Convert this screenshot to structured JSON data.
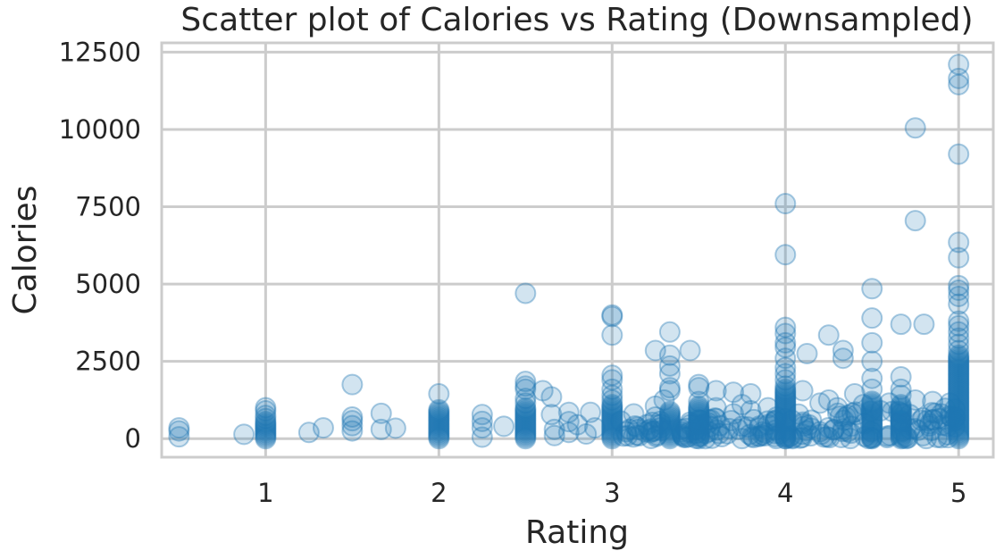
{
  "chart_data": {
    "type": "scatter",
    "title": "Scatter plot of Calories vs Rating (Downsampled)",
    "xlabel": "Rating",
    "ylabel": "Calories",
    "xlim": [
      0.4,
      5.2
    ],
    "ylim": [
      -600,
      12800
    ],
    "xticks": [
      1,
      2,
      3,
      4,
      5
    ],
    "yticks": [
      0,
      2500,
      5000,
      7500,
      10000,
      12500
    ],
    "grid": true,
    "color": "#1f77b4",
    "points": [
      [
        0.5,
        60
      ],
      [
        0.5,
        250
      ],
      [
        0.5,
        350
      ],
      [
        0.875,
        140
      ],
      [
        1.25,
        200
      ],
      [
        1.333,
        350
      ],
      [
        1.5,
        250
      ],
      [
        1.5,
        420
      ],
      [
        1.5,
        580
      ],
      [
        1.5,
        700
      ],
      [
        1.5,
        1750
      ],
      [
        1.667,
        300
      ],
      [
        1.667,
        820
      ],
      [
        1.75,
        340
      ],
      [
        2.25,
        50
      ],
      [
        2.25,
        350
      ],
      [
        2.25,
        560
      ],
      [
        2.25,
        780
      ],
      [
        2.375,
        400
      ],
      [
        2.5,
        4700
      ],
      [
        2.5,
        1850
      ],
      [
        2.5,
        1700
      ],
      [
        2.5,
        1600
      ],
      [
        2.6,
        1550
      ],
      [
        2.65,
        1350
      ],
      [
        2.65,
        780
      ],
      [
        2.667,
        100
      ],
      [
        2.667,
        300
      ],
      [
        2.75,
        200
      ],
      [
        2.75,
        550
      ],
      [
        2.75,
        850
      ],
      [
        2.8,
        450
      ],
      [
        2.85,
        150
      ],
      [
        2.875,
        850
      ],
      [
        2.9,
        350
      ],
      [
        3,
        4000
      ],
      [
        3,
        3950
      ],
      [
        3,
        3350
      ],
      [
        3,
        2050
      ],
      [
        3,
        1900
      ],
      [
        3,
        1600
      ],
      [
        3,
        1400
      ],
      [
        3,
        1250
      ],
      [
        3.1,
        300
      ],
      [
        3.125,
        800
      ],
      [
        3.15,
        300
      ],
      [
        3.2,
        450
      ],
      [
        3.25,
        700
      ],
      [
        3.25,
        1050
      ],
      [
        3.25,
        2850
      ],
      [
        3.3,
        1250
      ],
      [
        3.333,
        3450
      ],
      [
        3.333,
        2700
      ],
      [
        3.333,
        2350
      ],
      [
        3.333,
        2100
      ],
      [
        3.333,
        1650
      ],
      [
        3.333,
        1550
      ],
      [
        3.4,
        300
      ],
      [
        3.45,
        450
      ],
      [
        3.45,
        2850
      ],
      [
        3.5,
        1750
      ],
      [
        3.5,
        1650
      ],
      [
        3.5,
        1200
      ],
      [
        3.6,
        1550
      ],
      [
        3.6,
        1000
      ],
      [
        3.6,
        650
      ],
      [
        3.7,
        1500
      ],
      [
        3.7,
        800
      ],
      [
        3.75,
        400
      ],
      [
        3.75,
        1100
      ],
      [
        3.8,
        1450
      ],
      [
        3.8,
        900
      ],
      [
        3.85,
        350
      ],
      [
        3.9,
        1000
      ],
      [
        3.9,
        450
      ],
      [
        3.95,
        700
      ],
      [
        4,
        7600
      ],
      [
        4,
        5950
      ],
      [
        4,
        3600
      ],
      [
        4,
        3400
      ],
      [
        4,
        3100
      ],
      [
        4,
        2950
      ],
      [
        4,
        2600
      ],
      [
        4,
        2300
      ],
      [
        4,
        2100
      ],
      [
        4,
        1900
      ],
      [
        4,
        1700
      ],
      [
        4,
        1600
      ],
      [
        4.1,
        1550
      ],
      [
        4.125,
        2750
      ],
      [
        4.15,
        600
      ],
      [
        4.2,
        1150
      ],
      [
        4.25,
        3350
      ],
      [
        4.25,
        1250
      ],
      [
        4.3,
        1000
      ],
      [
        4.333,
        2850
      ],
      [
        4.333,
        2600
      ],
      [
        4.35,
        700
      ],
      [
        4.4,
        1450
      ],
      [
        4.45,
        1100
      ],
      [
        4.5,
        4850
      ],
      [
        4.5,
        3900
      ],
      [
        4.5,
        3100
      ],
      [
        4.5,
        2500
      ],
      [
        4.5,
        1950
      ],
      [
        4.5,
        1600
      ],
      [
        4.55,
        900
      ],
      [
        4.6,
        1150
      ],
      [
        4.667,
        3700
      ],
      [
        4.667,
        2000
      ],
      [
        4.667,
        1600
      ],
      [
        4.667,
        1400
      ],
      [
        4.75,
        10050
      ],
      [
        4.75,
        7050
      ],
      [
        4.75,
        1250
      ],
      [
        4.8,
        3700
      ],
      [
        4.85,
        1200
      ],
      [
        4.9,
        800
      ],
      [
        4.95,
        1150
      ],
      [
        5,
        12100
      ],
      [
        5,
        11650
      ],
      [
        5,
        11450
      ],
      [
        5,
        9200
      ],
      [
        5,
        6350
      ],
      [
        5,
        5850
      ],
      [
        5,
        4950
      ],
      [
        5,
        4800
      ],
      [
        5,
        4600
      ],
      [
        5,
        4350
      ],
      [
        5,
        3800
      ],
      [
        5,
        3650
      ],
      [
        5,
        3450
      ],
      [
        5,
        3250
      ],
      [
        5,
        3050
      ],
      [
        5,
        2850
      ],
      [
        5,
        2700
      ]
    ],
    "dense_clusters": [
      {
        "x": 1,
        "y_min": 0,
        "y_max": 560,
        "extra": [
          650,
          750,
          900,
          1000
        ]
      },
      {
        "x": 2,
        "y_min": 0,
        "y_max": 950,
        "extra": [
          1450
        ]
      },
      {
        "x": 2.5,
        "y_min": 0,
        "y_max": 1000,
        "extra": [
          1150,
          1300
        ]
      },
      {
        "x": 3,
        "y_min": 0,
        "y_max": 1150,
        "extra": []
      },
      {
        "x": 3.333,
        "y_min": 0,
        "y_max": 900,
        "extra": []
      },
      {
        "x": 3.5,
        "y_min": 0,
        "y_max": 1050,
        "extra": []
      },
      {
        "x": 4,
        "y_min": 0,
        "y_max": 1550,
        "extra": []
      },
      {
        "x": 4.5,
        "y_min": 0,
        "y_max": 1250,
        "extra": []
      },
      {
        "x": 4.667,
        "y_min": 0,
        "y_max": 1150,
        "extra": []
      },
      {
        "x": 5,
        "y_min": 0,
        "y_max": 2650,
        "extra": []
      }
    ],
    "band": [
      {
        "x_min": 3.05,
        "x_max": 3.3,
        "y_max": 650
      },
      {
        "x_min": 3.35,
        "x_max": 3.5,
        "y_max": 600
      },
      {
        "x_min": 3.5,
        "x_max": 4.0,
        "y_max": 700
      },
      {
        "x_min": 4.0,
        "x_max": 4.5,
        "y_max": 900
      },
      {
        "x_min": 4.5,
        "x_max": 5.0,
        "y_max": 1000
      }
    ]
  }
}
